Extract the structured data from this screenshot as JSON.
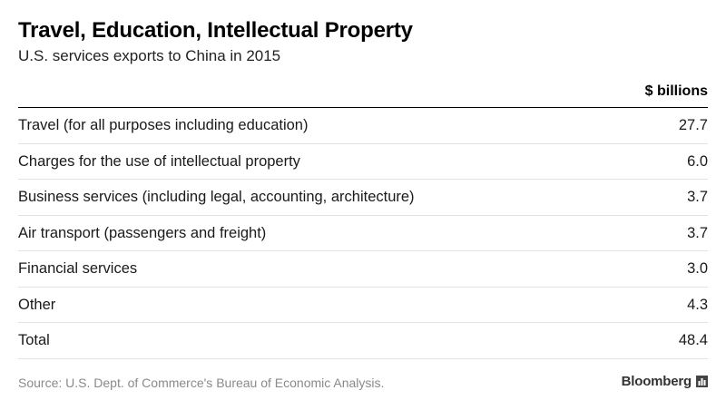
{
  "header": {
    "title": "Travel, Education, Intellectual Property",
    "subtitle": "U.S. services exports to China in 2015"
  },
  "table": {
    "column_header": "$ billions",
    "rows": [
      {
        "label": "Travel (for all purposes including education)",
        "value": "27.7"
      },
      {
        "label": "Charges for the use of intellectual property",
        "value": "6.0"
      },
      {
        "label": "Business services (including legal, accounting, architecture)",
        "value": "3.7"
      },
      {
        "label": "Air transport (passengers and freight)",
        "value": "3.7"
      },
      {
        "label": "Financial services",
        "value": "3.0"
      },
      {
        "label": "Other",
        "value": "4.3"
      },
      {
        "label": "Total",
        "value": "48.4"
      }
    ]
  },
  "footer": {
    "source": "Source: U.S. Dept. of Commerce's Bureau of Economic Analysis.",
    "brand": "Bloomberg",
    "brand_icon": "bloomberg-chart-icon"
  },
  "chart_data": {
    "type": "table",
    "title": "Travel, Education, Intellectual Property",
    "subtitle": "U.S. services exports to China in 2015",
    "columns": [
      "",
      "$ billions"
    ],
    "categories": [
      "Travel (for all purposes including education)",
      "Charges for the use of intellectual property",
      "Business services (including legal, accounting, architecture)",
      "Air transport (passengers and freight)",
      "Financial services",
      "Other",
      "Total"
    ],
    "values": [
      27.7,
      6.0,
      3.7,
      3.7,
      3.0,
      4.3,
      48.4
    ]
  }
}
